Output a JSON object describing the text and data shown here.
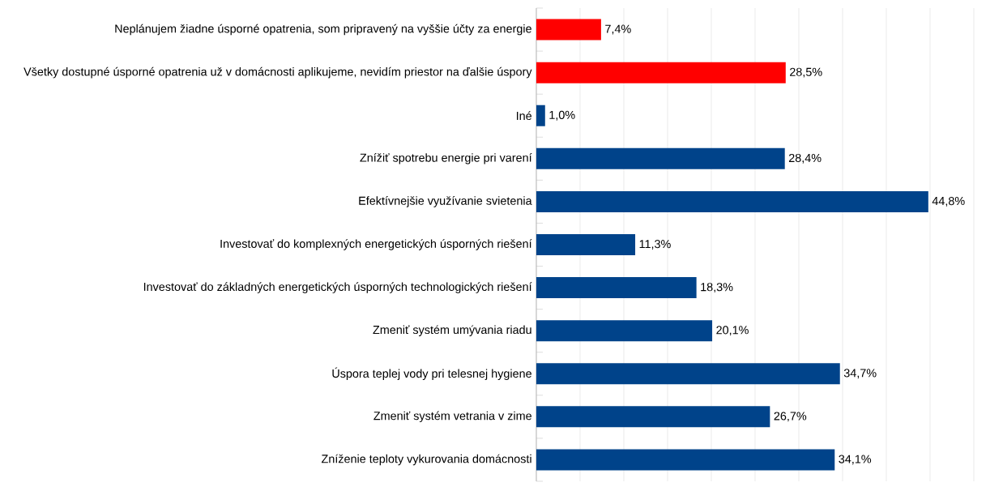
{
  "chart_data": {
    "type": "bar",
    "orientation": "horizontal",
    "categories": [
      "Neplánujem žiadne úsporné opatrenia, som pripravený na vyššie účty za energie",
      "Všetky dostupné úsporné opatrenia už v domácnosti aplikujeme, nevidím priestor na ďalšie úspory",
      "Iné",
      "Znížiť spotrebu energie pri varení",
      "Efektívnejšie využívanie svietenia",
      "Investovať do komplexných energetických úsporných riešení",
      "Investovať do základných energetických úsporných technologických riešení",
      "Zmeniť systém umývania riadu",
      "Úspora teplej vody pri telesnej hygiene",
      "Zmeniť systém vetrania v zime",
      "Zníženie teploty vykurovania domácnosti"
    ],
    "values": [
      7.4,
      28.5,
      1.0,
      28.4,
      44.8,
      11.3,
      18.3,
      20.1,
      34.7,
      26.7,
      34.1
    ],
    "value_labels": [
      "7,4%",
      "28,5%",
      "1,0%",
      "28,4%",
      "44,8%",
      "11,3%",
      "18,3%",
      "20,1%",
      "34,7%",
      "26,7%",
      "34,1%"
    ],
    "colors": [
      "#ff0000",
      "#ff0000",
      "#00438a",
      "#00438a",
      "#00438a",
      "#00438a",
      "#00438a",
      "#00438a",
      "#00438a",
      "#00438a",
      "#00438a"
    ],
    "xlim": [
      0,
      50
    ],
    "xticks": [
      {
        "value": 0,
        "label": null
      },
      {
        "value": 5,
        "label": null
      },
      {
        "value": 10,
        "label": null
      },
      {
        "value": 15,
        "label": null
      },
      {
        "value": 20,
        "label": null
      },
      {
        "value": 25,
        "label": null
      },
      {
        "value": 30,
        "label": null
      },
      {
        "value": 35,
        "label": null
      },
      {
        "value": 40,
        "label": null
      },
      {
        "value": 45,
        "label": null
      },
      {
        "value": 50,
        "label": null
      }
    ],
    "grid": "x",
    "tick_labels": "y"
  }
}
